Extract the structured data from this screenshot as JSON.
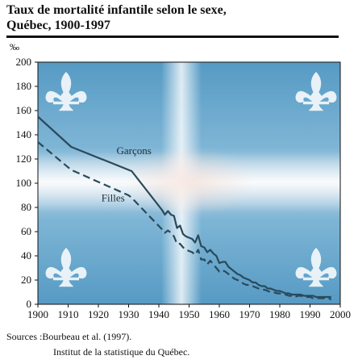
{
  "header": {
    "title_line1": "Taux de mortalité infantile selon le sexe,",
    "title_line2": "Québec, 1900-1997"
  },
  "chart_data": {
    "type": "line",
    "ylabel": "‰",
    "xlim": [
      1900,
      2000
    ],
    "ylim": [
      0,
      200
    ],
    "x_ticks": [
      1900,
      1910,
      1920,
      1930,
      1940,
      1950,
      1960,
      1970,
      1980,
      1990,
      2000
    ],
    "y_ticks": [
      0,
      20,
      40,
      60,
      80,
      100,
      120,
      140,
      160,
      180,
      200
    ],
    "grid": false,
    "background": "Québec flag (fleurdelisé)",
    "series": [
      {
        "name": "Garçons",
        "style": "solid",
        "color": "#2a4a5a",
        "label_at": [
          1926,
          124
        ],
        "points": [
          [
            1900,
            155
          ],
          [
            1911,
            130
          ],
          [
            1931,
            110
          ],
          [
            1941,
            78
          ],
          [
            1942,
            74
          ],
          [
            1943,
            77
          ],
          [
            1944,
            74
          ],
          [
            1945,
            73
          ],
          [
            1946,
            63
          ],
          [
            1947,
            65
          ],
          [
            1948,
            58
          ],
          [
            1949,
            56
          ],
          [
            1950,
            55
          ],
          [
            1951,
            54
          ],
          [
            1952,
            51
          ],
          [
            1953,
            57
          ],
          [
            1954,
            48
          ],
          [
            1955,
            47
          ],
          [
            1956,
            43
          ],
          [
            1957,
            45
          ],
          [
            1958,
            42
          ],
          [
            1959,
            40
          ],
          [
            1960,
            34
          ],
          [
            1961,
            35
          ],
          [
            1962,
            35
          ],
          [
            1963,
            31
          ],
          [
            1964,
            29
          ],
          [
            1965,
            27
          ],
          [
            1966,
            25
          ],
          [
            1967,
            24
          ],
          [
            1968,
            22
          ],
          [
            1969,
            21
          ],
          [
            1970,
            20
          ],
          [
            1971,
            18
          ],
          [
            1972,
            18
          ],
          [
            1973,
            16
          ],
          [
            1974,
            15
          ],
          [
            1975,
            15
          ],
          [
            1976,
            13
          ],
          [
            1977,
            13
          ],
          [
            1978,
            12
          ],
          [
            1979,
            11
          ],
          [
            1980,
            11
          ],
          [
            1981,
            10
          ],
          [
            1982,
            9
          ],
          [
            1983,
            9
          ],
          [
            1984,
            8
          ],
          [
            1985,
            8
          ],
          [
            1986,
            8
          ],
          [
            1987,
            8
          ],
          [
            1988,
            7
          ],
          [
            1989,
            7
          ],
          [
            1990,
            7
          ],
          [
            1991,
            7
          ],
          [
            1992,
            6
          ],
          [
            1993,
            6
          ],
          [
            1994,
            6
          ],
          [
            1995,
            6
          ],
          [
            1996,
            6
          ],
          [
            1997,
            6
          ]
        ]
      },
      {
        "name": "Filles",
        "style": "dashed",
        "color": "#2a4a5a",
        "label_at": [
          1921,
          85
        ],
        "points": [
          [
            1900,
            134
          ],
          [
            1911,
            111
          ],
          [
            1930,
            90
          ],
          [
            1931,
            88
          ],
          [
            1941,
            62
          ],
          [
            1942,
            59
          ],
          [
            1943,
            61
          ],
          [
            1944,
            59
          ],
          [
            1945,
            56
          ],
          [
            1946,
            50
          ],
          [
            1947,
            50
          ],
          [
            1948,
            47
          ],
          [
            1949,
            45
          ],
          [
            1950,
            44
          ],
          [
            1951,
            43
          ],
          [
            1952,
            41
          ],
          [
            1953,
            45
          ],
          [
            1954,
            37
          ],
          [
            1955,
            37
          ],
          [
            1956,
            33
          ],
          [
            1957,
            36
          ],
          [
            1958,
            33
          ],
          [
            1959,
            30
          ],
          [
            1960,
            27
          ],
          [
            1961,
            28
          ],
          [
            1962,
            27
          ],
          [
            1963,
            25
          ],
          [
            1964,
            23
          ],
          [
            1965,
            21
          ],
          [
            1966,
            20
          ],
          [
            1967,
            19
          ],
          [
            1968,
            17
          ],
          [
            1969,
            16
          ],
          [
            1970,
            16
          ],
          [
            1971,
            15
          ],
          [
            1972,
            14
          ],
          [
            1973,
            13
          ],
          [
            1974,
            12
          ],
          [
            1975,
            12
          ],
          [
            1976,
            11
          ],
          [
            1977,
            10
          ],
          [
            1978,
            10
          ],
          [
            1979,
            9
          ],
          [
            1980,
            9
          ],
          [
            1981,
            8
          ],
          [
            1982,
            8
          ],
          [
            1983,
            7
          ],
          [
            1984,
            7
          ],
          [
            1985,
            6
          ],
          [
            1986,
            7
          ],
          [
            1987,
            7
          ],
          [
            1988,
            6
          ],
          [
            1989,
            6
          ],
          [
            1990,
            6
          ],
          [
            1991,
            5
          ],
          [
            1992,
            5
          ],
          [
            1993,
            5
          ],
          [
            1994,
            5
          ],
          [
            1995,
            5
          ],
          [
            1996,
            5
          ],
          [
            1997,
            4
          ]
        ]
      }
    ]
  },
  "sources": {
    "line1": "Sources :Bourbeau et al. (1997).",
    "line2": "Institut de la statistique du Québec."
  }
}
